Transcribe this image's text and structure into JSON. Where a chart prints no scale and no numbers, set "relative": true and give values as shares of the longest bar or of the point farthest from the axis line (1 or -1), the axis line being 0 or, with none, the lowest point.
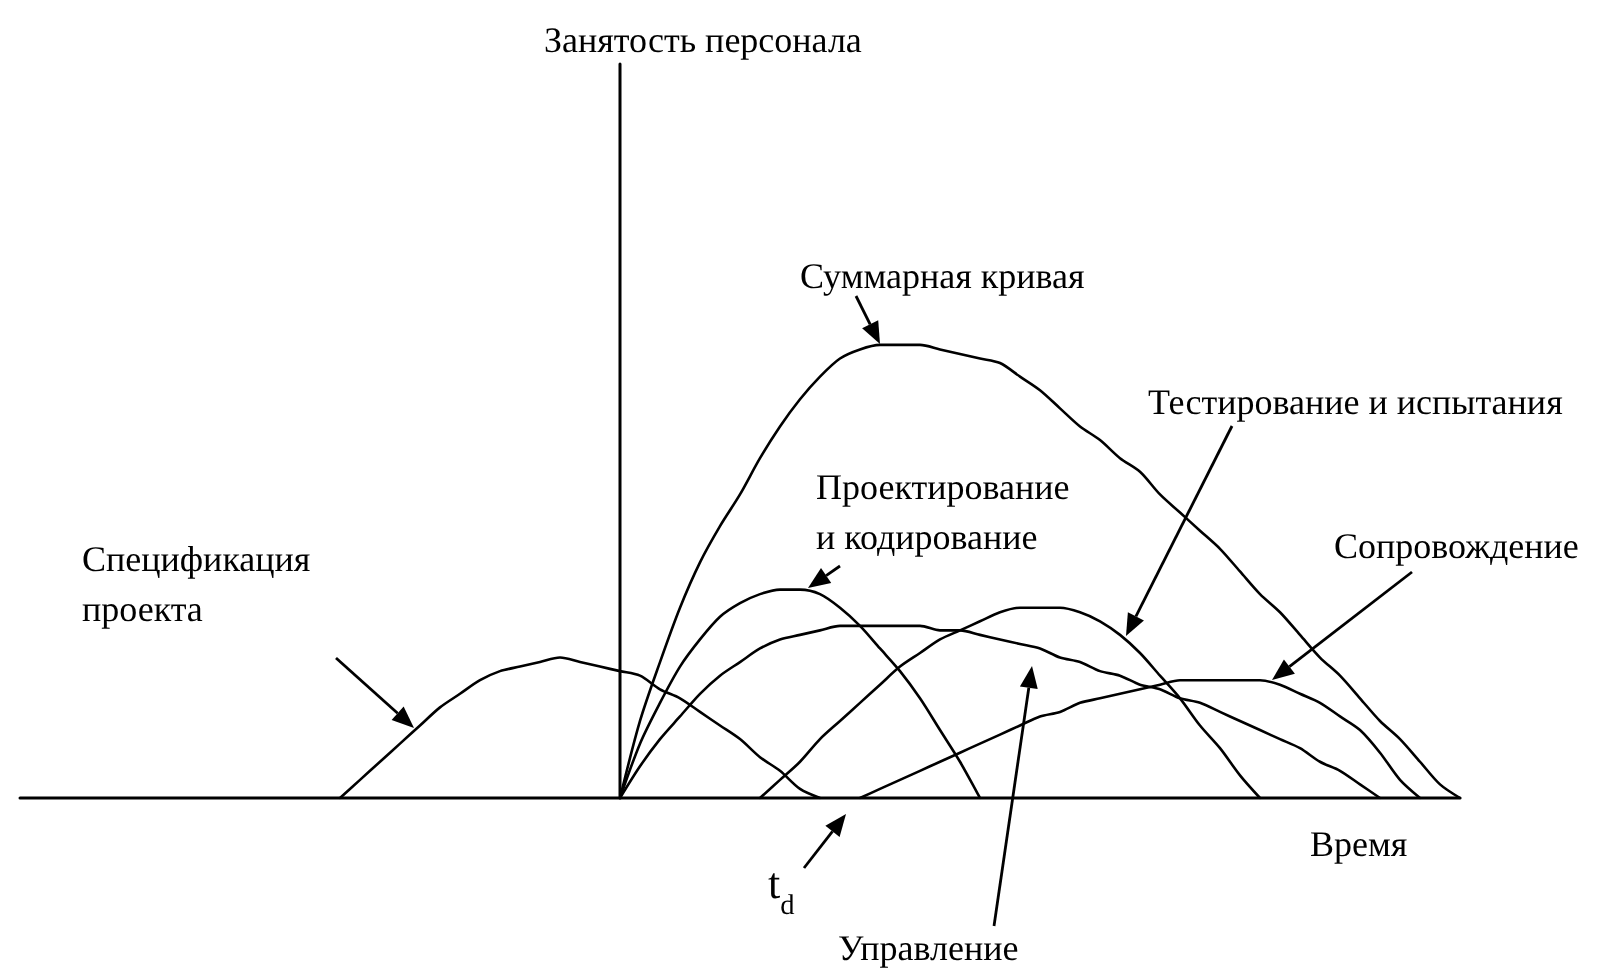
{
  "chart_data": {
    "type": "line",
    "relative": true,
    "xlabel": "Время",
    "annotations": [
      "Занятость персонала",
      "t$_{d}$"
    ],
    "categories": [
      null,
      null,
      null,
      null,
      null,
      null,
      null,
      null,
      null,
      null,
      null,
      null,
      null,
      null,
      null,
      null,
      null,
      null,
      null,
      null,
      null,
      null,
      null,
      null,
      null,
      null,
      null,
      null,
      null,
      null,
      null,
      null,
      null,
      null,
      null,
      null,
      null,
      null,
      null,
      null,
      null,
      null,
      null,
      null,
      null,
      null,
      null,
      null,
      null,
      null,
      null,
      null,
      null,
      null,
      null,
      null,
      null,
      null,
      null,
      null,
      null,
      null,
      null,
      null,
      null,
      null,
      null,
      null,
      null,
      null,
      null,
      null,
      null
    ],
    "series": [
      {
        "name": "Спецификация проекта",
        "color": "#000000",
        "values": [
          null,
          null,
          null,
          null,
          null,
          null,
          null,
          null,
          null,
          null,
          null,
          null,
          null,
          null,
          null,
          null,
          0,
          0.04,
          0.08,
          0.12,
          0.16,
          0.2,
          0.23,
          0.26,
          0.28,
          0.29,
          0.3,
          0.31,
          0.3,
          0.29,
          0.28,
          0.27,
          0.24,
          0.22,
          0.19,
          0.16,
          0.13,
          0.09,
          0.06,
          0.02,
          0,
          null,
          null,
          null,
          null,
          null,
          null,
          null,
          null,
          null,
          null,
          null,
          null,
          null,
          null,
          null,
          null,
          null,
          null,
          null,
          null,
          null,
          null,
          null,
          null,
          null,
          null,
          null,
          null,
          null,
          null,
          null,
          null
        ]
      },
      {
        "name": "Проектирование и кодирование",
        "color": "#000000",
        "values": [
          null,
          null,
          null,
          null,
          null,
          null,
          null,
          null,
          null,
          null,
          null,
          null,
          null,
          null,
          null,
          null,
          null,
          null,
          null,
          null,
          null,
          null,
          null,
          null,
          null,
          null,
          null,
          null,
          null,
          null,
          0,
          0.12,
          0.21,
          0.29,
          0.35,
          0.4,
          0.43,
          0.45,
          0.46,
          0.46,
          0.45,
          0.42,
          0.38,
          0.33,
          0.28,
          0.22,
          0.15,
          0.08,
          0,
          null,
          null,
          null,
          null,
          null,
          null,
          null,
          null,
          null,
          null,
          null,
          null,
          null,
          null,
          null,
          null,
          null,
          null,
          null,
          null,
          null,
          null,
          null,
          null
        ]
      },
      {
        "name": "Управление",
        "color": "#000000",
        "values": [
          null,
          null,
          null,
          null,
          null,
          null,
          null,
          null,
          null,
          null,
          null,
          null,
          null,
          null,
          null,
          null,
          null,
          null,
          null,
          null,
          null,
          null,
          null,
          null,
          null,
          null,
          null,
          null,
          null,
          null,
          0,
          0.07,
          0.13,
          0.18,
          0.23,
          0.27,
          0.3,
          0.33,
          0.35,
          0.36,
          0.37,
          0.38,
          0.38,
          0.38,
          0.38,
          0.38,
          0.37,
          0.37,
          0.36,
          0.35,
          0.34,
          0.33,
          0.31,
          0.3,
          0.28,
          0.27,
          0.25,
          0.24,
          0.22,
          0.21,
          0.19,
          0.17,
          0.15,
          0.13,
          0.11,
          0.08,
          0.06,
          0.03,
          0,
          null,
          null,
          null,
          null
        ]
      },
      {
        "name": "Тестирование и испытания",
        "color": "#000000",
        "values": [
          null,
          null,
          null,
          null,
          null,
          null,
          null,
          null,
          null,
          null,
          null,
          null,
          null,
          null,
          null,
          null,
          null,
          null,
          null,
          null,
          null,
          null,
          null,
          null,
          null,
          null,
          null,
          null,
          null,
          null,
          null,
          null,
          null,
          null,
          null,
          null,
          null,
          0,
          0.04,
          0.08,
          0.13,
          0.17,
          0.21,
          0.25,
          0.29,
          0.32,
          0.35,
          0.37,
          0.39,
          0.41,
          0.42,
          0.42,
          0.42,
          0.41,
          0.39,
          0.36,
          0.32,
          0.27,
          0.22,
          0.16,
          0.11,
          0.05,
          0,
          null,
          null,
          null,
          null,
          null,
          null,
          null,
          null,
          null,
          null
        ]
      },
      {
        "name": "Сопровождение",
        "color": "#000000",
        "values": [
          null,
          null,
          null,
          null,
          null,
          null,
          null,
          null,
          null,
          null,
          null,
          null,
          null,
          null,
          null,
          null,
          null,
          null,
          null,
          null,
          null,
          null,
          null,
          null,
          null,
          null,
          null,
          null,
          null,
          null,
          null,
          null,
          null,
          null,
          null,
          null,
          null,
          null,
          null,
          null,
          null,
          null,
          0,
          0.02,
          0.04,
          0.06,
          0.08,
          0.1,
          0.12,
          0.14,
          0.16,
          0.18,
          0.19,
          0.21,
          0.22,
          0.23,
          0.24,
          0.25,
          0.26,
          0.26,
          0.26,
          0.26,
          0.26,
          0.25,
          0.23,
          0.21,
          0.18,
          0.15,
          0.1,
          0.04,
          0,
          null,
          null
        ]
      },
      {
        "name": "Суммарная кривая",
        "color": "#000000",
        "values": [
          null,
          null,
          null,
          null,
          null,
          null,
          null,
          null,
          null,
          null,
          null,
          null,
          null,
          null,
          null,
          null,
          null,
          null,
          null,
          null,
          null,
          null,
          null,
          null,
          null,
          null,
          null,
          null,
          null,
          null,
          0,
          0.17,
          0.3,
          0.42,
          0.52,
          0.6,
          0.67,
          0.75,
          0.82,
          0.88,
          0.93,
          0.97,
          0.99,
          1,
          1,
          1,
          0.99,
          0.98,
          0.97,
          0.96,
          0.93,
          0.9,
          0.86,
          0.82,
          0.79,
          0.75,
          0.72,
          0.67,
          0.63,
          0.59,
          0.55,
          0.5,
          0.45,
          0.41,
          0.36,
          0.31,
          0.27,
          0.22,
          0.17,
          0.13,
          0.08,
          0.03,
          0
        ]
      }
    ]
  }
}
